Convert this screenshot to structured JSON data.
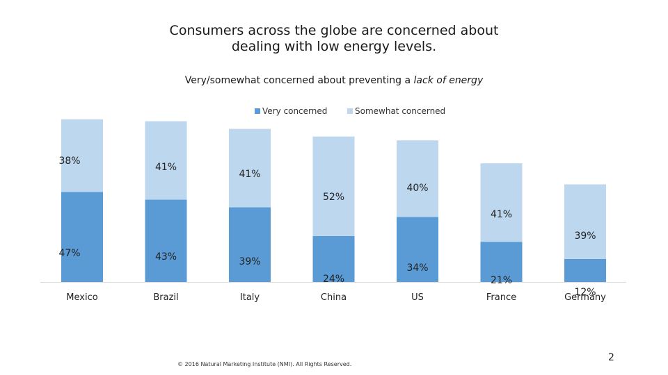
{
  "title_line1": "Consumers across the globe are concerned about",
  "title_line2": "dealing with low energy levels.",
  "subtitle_pre": "Very/somewhat concerned about preventing a ",
  "subtitle_em": "lack of energy",
  "footer": "© 2016 Natural Marketing Institute (NMI). All Rights Reserved.",
  "page_number": "2",
  "colors": {
    "very": "#5b9bd5",
    "somewhat": "#bdd7ee"
  },
  "chart_data": {
    "type": "bar",
    "stacked": true,
    "categories": [
      "Mexico",
      "Brazil",
      "Italy",
      "China",
      "US",
      "France",
      "Germany"
    ],
    "series": [
      {
        "name": "Very concerned",
        "values": [
          47,
          43,
          39,
          24,
          34,
          21,
          12
        ]
      },
      {
        "name": "Somewhat concerned",
        "values": [
          38,
          41,
          41,
          52,
          40,
          41,
          39
        ]
      }
    ],
    "labels": {
      "very": [
        "47%",
        "43%",
        "39%",
        "24%",
        "34%",
        "21%",
        "12%"
      ],
      "somewhat": [
        "38%",
        "41%",
        "41%",
        "52%",
        "40%",
        "41%",
        "39%"
      ]
    },
    "legend": [
      "Very concerned",
      "Somewhat concerned"
    ],
    "ylim": [
      0,
      100
    ]
  }
}
